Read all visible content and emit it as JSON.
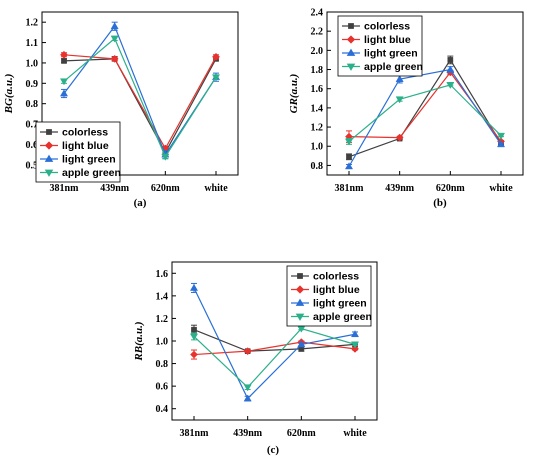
{
  "series_colors": {
    "colorless": "#404040",
    "light blue": "#e8322d",
    "light green": "#2a6fd6",
    "apple green": "#2bb08a"
  },
  "chart_data": [
    {
      "type": "line",
      "categories": [
        "381nm",
        "439nm",
        "620nm",
        "white"
      ],
      "ylabel": "BG(a.u.)",
      "ylim": [
        0.45,
        1.25
      ],
      "yticks": [
        0.5,
        0.6,
        0.7,
        0.8,
        0.9,
        1.0,
        1.1,
        1.2
      ],
      "legend_position": "bottom-left",
      "caption": "(a)",
      "series": [
        {
          "name": "colorless",
          "values": [
            1.01,
            1.02,
            0.56,
            1.02
          ],
          "err": [
            0.01,
            0.01,
            0.01,
            0.01
          ],
          "marker": "square"
        },
        {
          "name": "light blue",
          "values": [
            1.04,
            1.02,
            0.58,
            1.03
          ],
          "err": [
            0.01,
            0.01,
            0.01,
            0.01
          ],
          "marker": "diamond"
        },
        {
          "name": "light green",
          "values": [
            0.85,
            1.18,
            0.55,
            0.93
          ],
          "err": [
            0.02,
            0.02,
            0.02,
            0.02
          ],
          "marker": "triangle-up"
        },
        {
          "name": "apple green",
          "values": [
            0.91,
            1.12,
            0.54,
            0.93
          ],
          "err": [
            0.01,
            0.01,
            0.01,
            0.01
          ],
          "marker": "triangle-down"
        }
      ]
    },
    {
      "type": "line",
      "categories": [
        "381nm",
        "439nm",
        "620nm",
        "white"
      ],
      "ylabel": "GR(a.u.)",
      "ylim": [
        0.7,
        2.4
      ],
      "yticks": [
        0.8,
        1.0,
        1.2,
        1.4,
        1.6,
        1.8,
        2.0,
        2.2,
        2.4
      ],
      "legend_position": "top-left",
      "caption": "(b)",
      "series": [
        {
          "name": "colorless",
          "values": [
            0.89,
            1.08,
            1.9,
            1.03
          ],
          "err": [
            0.03,
            0.01,
            0.04,
            0.01
          ],
          "marker": "square"
        },
        {
          "name": "light blue",
          "values": [
            1.1,
            1.09,
            1.77,
            1.05
          ],
          "err": [
            0.06,
            0.01,
            0.02,
            0.01
          ],
          "marker": "diamond"
        },
        {
          "name": "light green",
          "values": [
            0.79,
            1.7,
            1.8,
            1.02
          ],
          "err": [
            0.02,
            0.04,
            0.03,
            0.01
          ],
          "marker": "triangle-up"
        },
        {
          "name": "apple green",
          "values": [
            1.05,
            1.49,
            1.64,
            1.11
          ],
          "err": [
            0.03,
            0.02,
            0.01,
            0.01
          ],
          "marker": "triangle-down"
        }
      ]
    },
    {
      "type": "line",
      "categories": [
        "381nm",
        "439nm",
        "620nm",
        "white"
      ],
      "ylabel": "RB(a.u.)",
      "ylim": [
        0.3,
        1.7
      ],
      "yticks": [
        0.4,
        0.6,
        0.8,
        1.0,
        1.2,
        1.4,
        1.6
      ],
      "legend_position": "top-right",
      "caption": "(c)",
      "series": [
        {
          "name": "colorless",
          "values": [
            1.1,
            0.91,
            0.93,
            0.97
          ],
          "err": [
            0.04,
            0.01,
            0.02,
            0.01
          ],
          "marker": "square"
        },
        {
          "name": "light blue",
          "values": [
            0.88,
            0.91,
            0.99,
            0.93
          ],
          "err": [
            0.04,
            0.01,
            0.01,
            0.01
          ],
          "marker": "diamond"
        },
        {
          "name": "light green",
          "values": [
            1.47,
            0.49,
            0.97,
            1.06
          ],
          "err": [
            0.04,
            0.02,
            0.01,
            0.02
          ],
          "marker": "triangle-up"
        },
        {
          "name": "apple green",
          "values": [
            1.04,
            0.59,
            1.11,
            0.97
          ],
          "err": [
            0.03,
            0.02,
            0.01,
            0.01
          ],
          "marker": "triangle-down"
        }
      ]
    }
  ]
}
